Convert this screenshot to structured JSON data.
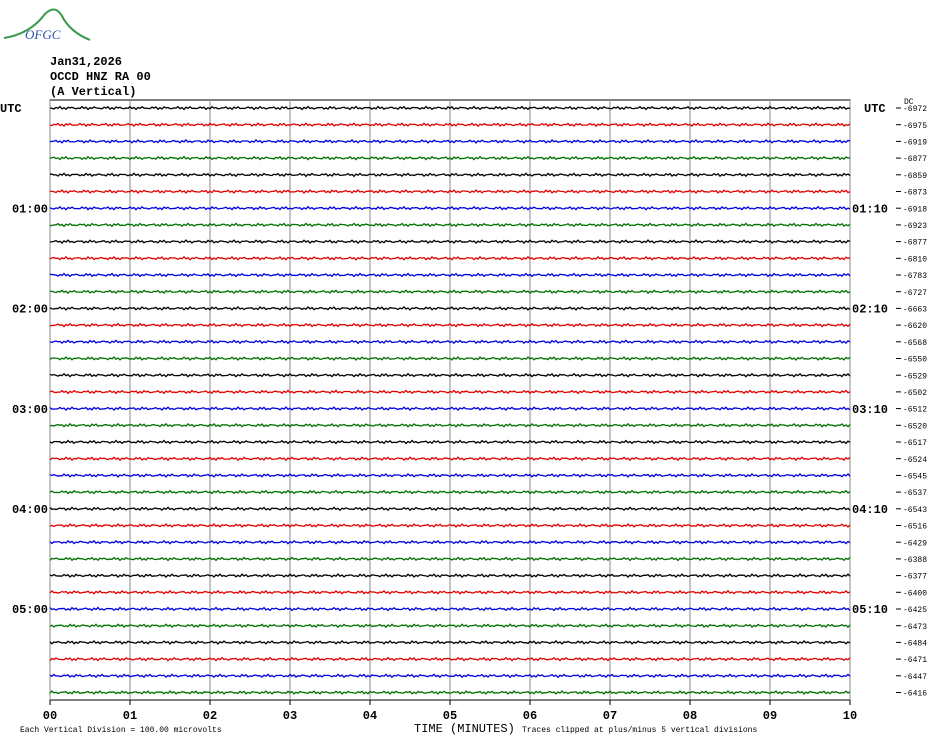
{
  "header": {
    "logo": "OFGC",
    "date": "Jan31,2026",
    "station": "OCCD HNZ RA 00",
    "component": "(A Vertical)"
  },
  "chart_data": {
    "type": "helicorder",
    "xlabel": "TIME (MINUTES)",
    "xlim": [
      0,
      10
    ],
    "xticks": [
      {
        "value": 0,
        "label": "00"
      },
      {
        "value": 1,
        "label": "01"
      },
      {
        "value": 2,
        "label": "02"
      },
      {
        "value": 3,
        "label": "03"
      },
      {
        "value": 4,
        "label": "04"
      },
      {
        "value": 5,
        "label": "05"
      },
      {
        "value": 6,
        "label": "06"
      },
      {
        "value": 7,
        "label": "07"
      },
      {
        "value": 8,
        "label": "08"
      },
      {
        "value": 9,
        "label": "09"
      },
      10
    ],
    "grid": true,
    "dc_label": "DC",
    "colors": [
      "#000000",
      "#e00000",
      "#0000e0",
      "#007000"
    ],
    "values": [
      -6972,
      -6975,
      -6919,
      -6877,
      -6859,
      -6873,
      -6918,
      -6923,
      -6877,
      -6810,
      -6783,
      -6727,
      -6663,
      -6620,
      -6568,
      -6550,
      -6529,
      -6502,
      -6512,
      -6520,
      -6517,
      -6524,
      -6545,
      -6537,
      -6543,
      -6516,
      -6429,
      -6388,
      -6377,
      -6400,
      -6425,
      -6473,
      -6484,
      -6471,
      -6447,
      -6416
    ],
    "left_labels": [
      "UTC",
      null,
      null,
      null,
      null,
      null,
      "01:00",
      null,
      null,
      null,
      null,
      null,
      "02:00",
      null,
      null,
      null,
      null,
      null,
      "03:00",
      null,
      null,
      null,
      null,
      null,
      "04:00",
      null,
      null,
      null,
      null,
      null,
      "05:00",
      null,
      null,
      null,
      null,
      null
    ],
    "right_labels": [
      "UTC",
      null,
      null,
      null,
      null,
      null,
      "01:10",
      null,
      null,
      null,
      null,
      null,
      "02:10",
      null,
      null,
      null,
      null,
      null,
      "03:10",
      null,
      null,
      null,
      null,
      null,
      "04:10",
      null,
      null,
      null,
      null,
      null,
      "05:10",
      null,
      null,
      null,
      null,
      null
    ],
    "footer_left": "Each Vertical Division =  100.00 microvolts",
    "footer_right": "Traces clipped at plus/minus 5 vertical divisions"
  }
}
